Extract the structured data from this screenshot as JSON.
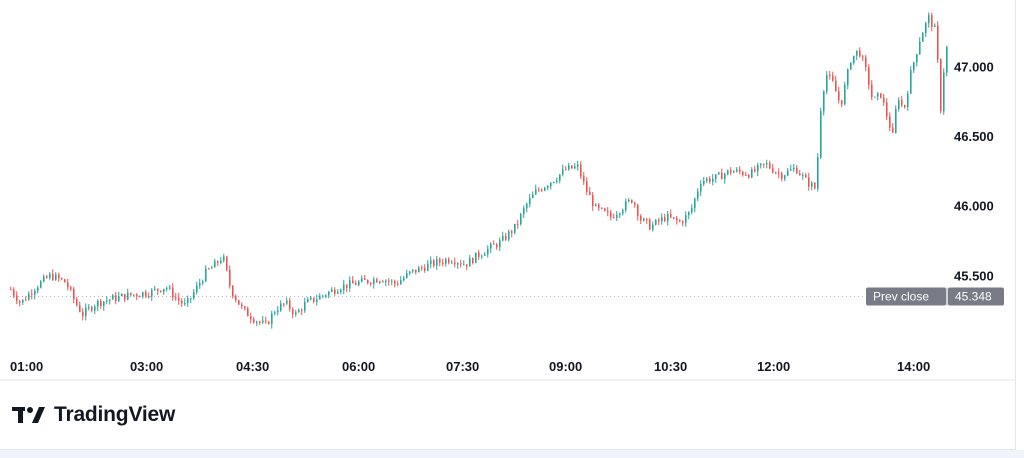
{
  "colors": {
    "up": "#26a69a",
    "down": "#ef5350",
    "wick_up": "#26a69a",
    "wick_down": "#ef5350",
    "prev_close_line": "#b2b5be",
    "prev_close_label_bg": "#787b86",
    "grid": "#eeeeee"
  },
  "brand": {
    "name": "TradingView",
    "logo_icon": "tradingview-logo-icon"
  },
  "chart_data": {
    "type": "candlestick",
    "x_tick_labels": [
      "01:00",
      "03:00",
      "04:30",
      "06:00",
      "07:30",
      "09:00",
      "10:30",
      "12:00",
      "14:00"
    ],
    "y_tick_labels": [
      "47.000",
      "46.500",
      "46.000",
      "45.500"
    ],
    "y_ticks": [
      47.0,
      46.5,
      46.0,
      45.5
    ],
    "ylim": [
      45.0,
      47.42
    ],
    "prev_close": {
      "label": "Prev close",
      "value": "45.348",
      "y": 45.348
    },
    "path": [
      [
        0,
        45.4
      ],
      [
        10,
        45.3
      ],
      [
        25,
        45.42
      ],
      [
        40,
        45.5
      ],
      [
        55,
        45.45
      ],
      [
        65,
        45.3
      ],
      [
        72,
        45.22
      ],
      [
        85,
        45.3
      ],
      [
        100,
        45.33
      ],
      [
        120,
        45.36
      ],
      [
        140,
        45.38
      ],
      [
        155,
        45.42
      ],
      [
        165,
        45.34
      ],
      [
        175,
        45.28
      ],
      [
        185,
        45.4
      ],
      [
        195,
        45.52
      ],
      [
        205,
        45.58
      ],
      [
        212,
        45.64
      ],
      [
        220,
        45.4
      ],
      [
        232,
        45.25
      ],
      [
        245,
        45.18
      ],
      [
        255,
        45.14
      ],
      [
        265,
        45.26
      ],
      [
        275,
        45.3
      ],
      [
        285,
        45.22
      ],
      [
        295,
        45.3
      ],
      [
        310,
        45.35
      ],
      [
        330,
        45.42
      ],
      [
        350,
        45.45
      ],
      [
        370,
        45.48
      ],
      [
        385,
        45.44
      ],
      [
        400,
        45.52
      ],
      [
        420,
        45.58
      ],
      [
        440,
        45.62
      ],
      [
        455,
        45.58
      ],
      [
        470,
        45.66
      ],
      [
        490,
        45.74
      ],
      [
        505,
        45.85
      ],
      [
        515,
        46.0
      ],
      [
        525,
        46.1
      ],
      [
        535,
        46.15
      ],
      [
        545,
        46.2
      ],
      [
        555,
        46.26
      ],
      [
        567,
        46.28
      ],
      [
        575,
        46.12
      ],
      [
        585,
        45.98
      ],
      [
        600,
        45.92
      ],
      [
        610,
        45.98
      ],
      [
        622,
        46.05
      ],
      [
        630,
        45.9
      ],
      [
        640,
        45.85
      ],
      [
        655,
        45.92
      ],
      [
        670,
        45.88
      ],
      [
        680,
        45.96
      ],
      [
        690,
        46.18
      ],
      [
        705,
        46.2
      ],
      [
        720,
        46.25
      ],
      [
        740,
        46.23
      ],
      [
        755,
        46.3
      ],
      [
        770,
        46.22
      ],
      [
        785,
        46.27
      ],
      [
        795,
        46.18
      ],
      [
        805,
        46.12
      ],
      [
        810,
        46.7
      ],
      [
        815,
        46.95
      ],
      [
        822,
        46.88
      ],
      [
        830,
        46.72
      ],
      [
        840,
        47.05
      ],
      [
        848,
        47.12
      ],
      [
        856,
        46.95
      ],
      [
        862,
        46.75
      ],
      [
        870,
        46.8
      ],
      [
        878,
        46.6
      ],
      [
        882,
        46.5
      ],
      [
        887,
        46.8
      ],
      [
        893,
        46.68
      ],
      [
        900,
        46.95
      ],
      [
        910,
        47.22
      ],
      [
        918,
        47.35
      ],
      [
        925,
        47.25
      ],
      [
        930,
        46.7
      ],
      [
        935,
        47.15
      ],
      [
        938,
        47.1
      ]
    ]
  }
}
